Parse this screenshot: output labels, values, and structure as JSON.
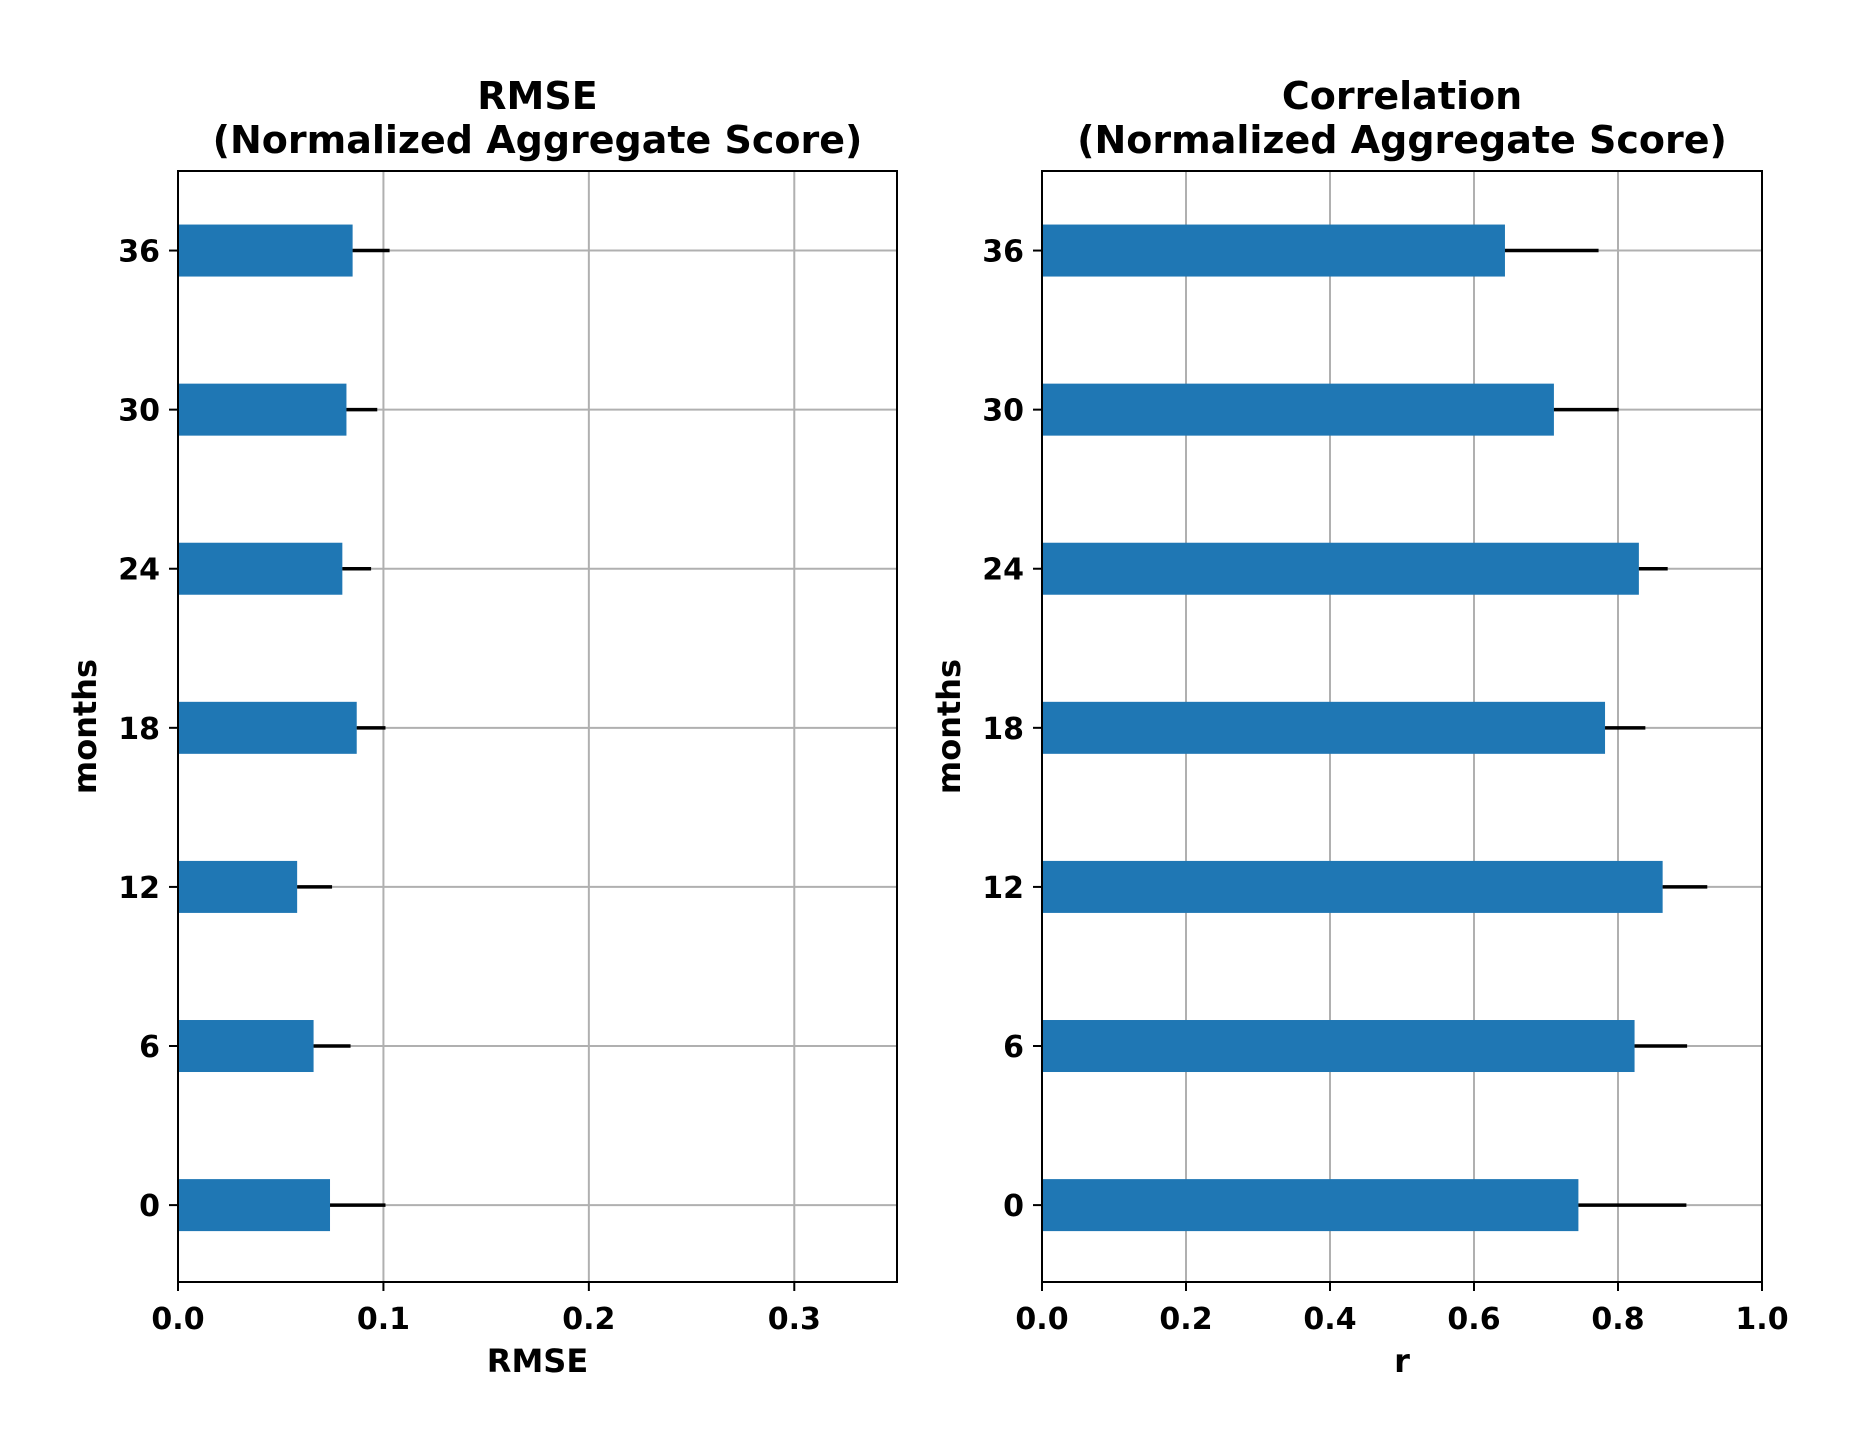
{
  "chart_data": [
    {
      "type": "bar",
      "orientation": "horizontal",
      "title_lines": [
        "RMSE",
        "(Normalized Aggregate Score)"
      ],
      "xlabel": "RMSE",
      "ylabel": "months",
      "categories": [
        "0",
        "6",
        "12",
        "18",
        "24",
        "30",
        "36"
      ],
      "category_values": [
        0,
        6,
        12,
        18,
        24,
        30,
        36
      ],
      "values": [
        0.074,
        0.066,
        0.058,
        0.087,
        0.08,
        0.082,
        0.085
      ],
      "error_upper": [
        0.101,
        0.084,
        0.075,
        0.101,
        0.094,
        0.097,
        0.103
      ],
      "xlim": [
        0,
        0.35
      ],
      "ylim": [
        -2.9,
        39
      ],
      "xticks": [
        0.0,
        0.1,
        0.2,
        0.3
      ],
      "xtick_labels": [
        "0.0",
        "0.1",
        "0.2",
        "0.3"
      ],
      "grid": true,
      "bar_color": "#1f77b4",
      "error_color": "#000000"
    },
    {
      "type": "bar",
      "orientation": "horizontal",
      "title_lines": [
        "Correlation",
        "(Normalized Aggregate Score)"
      ],
      "xlabel": "r",
      "ylabel": "months",
      "categories": [
        "0",
        "6",
        "12",
        "18",
        "24",
        "30",
        "36"
      ],
      "category_values": [
        0,
        6,
        12,
        18,
        24,
        30,
        36
      ],
      "values": [
        0.745,
        0.823,
        0.862,
        0.782,
        0.829,
        0.711,
        0.643
      ],
      "error_upper": [
        0.895,
        0.896,
        0.924,
        0.838,
        0.869,
        0.801,
        0.773
      ],
      "xlim": [
        0,
        1.0
      ],
      "ylim": [
        -2.9,
        39
      ],
      "xticks": [
        0.0,
        0.2,
        0.4,
        0.6,
        0.8,
        1.0
      ],
      "xtick_labels": [
        "0.0",
        "0.2",
        "0.4",
        "0.6",
        "0.8",
        "1.0"
      ],
      "grid": true,
      "bar_color": "#1f77b4",
      "error_color": "#000000"
    }
  ]
}
